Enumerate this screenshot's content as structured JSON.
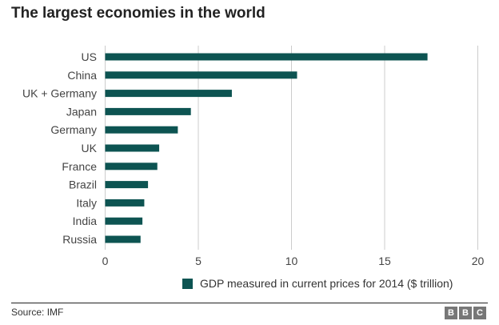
{
  "chart_data": {
    "type": "bar",
    "orientation": "horizontal",
    "title": "The largest economies in the world",
    "categories": [
      "US",
      "China",
      "UK + Germany",
      "Japan",
      "Germany",
      "UK",
      "France",
      "Brazil",
      "Italy",
      "India",
      "Russia"
    ],
    "series": [
      {
        "name": "GDP measured in current prices for 2014 ($ trillion)",
        "values": [
          17.3,
          10.3,
          6.8,
          4.6,
          3.9,
          2.9,
          2.8,
          2.3,
          2.1,
          2.0,
          1.9
        ]
      }
    ],
    "xlim": [
      0,
      20
    ],
    "xticks": [
      "0",
      "5",
      "10",
      "15",
      "20"
    ],
    "grid": true,
    "legend_position": "bottom-right",
    "color": "#0d5452"
  },
  "footer": {
    "source": "Source: IMF",
    "logo": [
      "B",
      "B",
      "C"
    ]
  }
}
